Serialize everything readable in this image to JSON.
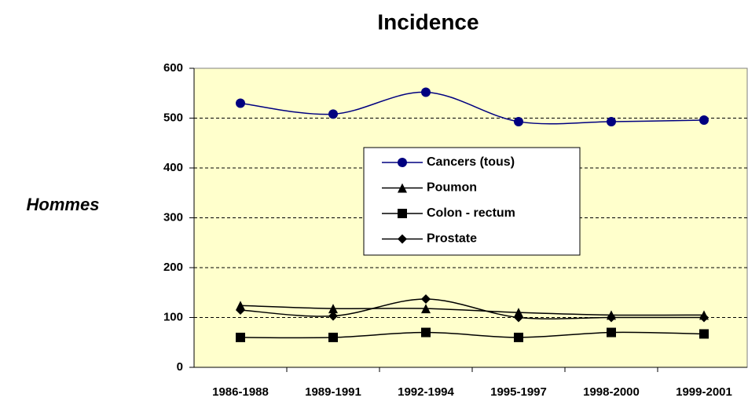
{
  "chart_data": {
    "type": "line",
    "title": "Incidence",
    "ylabel": "Hommes",
    "categories": [
      "1986-1988",
      "1989-1991",
      "1992-1994",
      "1995-1997",
      "1998-2000",
      "1999-2001"
    ],
    "series": [
      {
        "name": "Cancers (tous)",
        "color": "#000080",
        "marker": "circle",
        "values": [
          530,
          508,
          552,
          493,
          493,
          496
        ]
      },
      {
        "name": "Poumon",
        "color": "#000000",
        "marker": "triangle",
        "values": [
          124,
          118,
          118,
          110,
          105,
          105
        ]
      },
      {
        "name": "Colon - rectum",
        "color": "#000000",
        "marker": "square",
        "values": [
          60,
          60,
          70,
          60,
          70,
          67
        ]
      },
      {
        "name": "Prostate",
        "color": "#000000",
        "marker": "diamond",
        "values": [
          115,
          103,
          137,
          100,
          100,
          100
        ]
      }
    ],
    "ylim": [
      0,
      600
    ],
    "yticks": [
      0,
      100,
      200,
      300,
      400,
      500,
      600
    ],
    "grid": true,
    "smooth": true,
    "legend": "center"
  }
}
